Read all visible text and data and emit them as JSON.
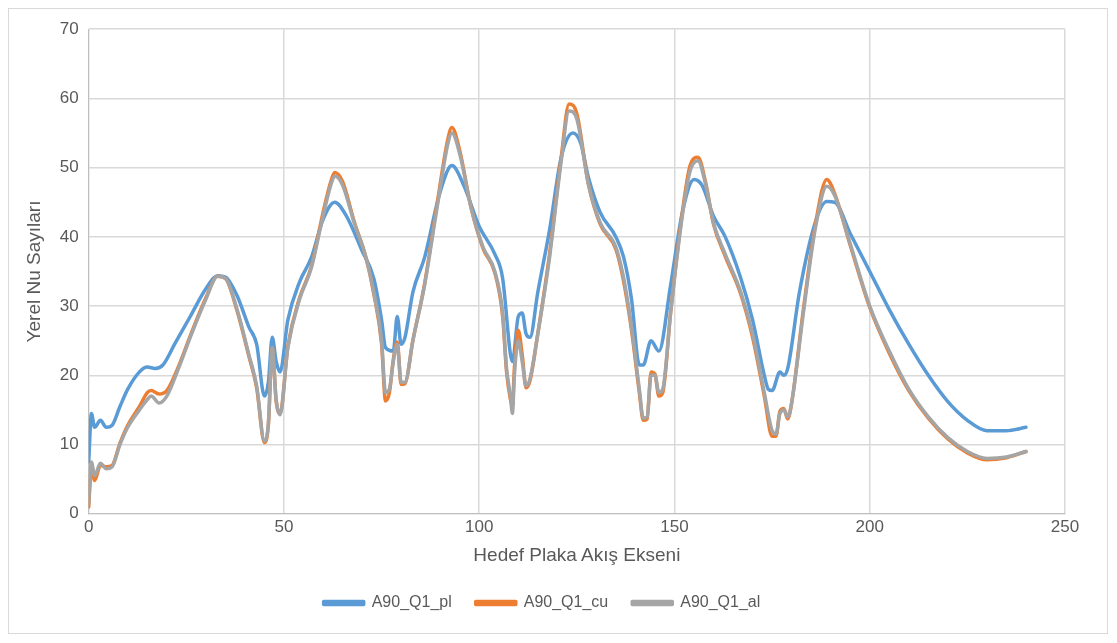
{
  "chart_data": {
    "type": "line",
    "xlabel": "Hedef Plaka Akış Ekseni",
    "ylabel": "Yerel Nu Sayıları",
    "xlim": [
      0,
      250
    ],
    "xticks": [
      0,
      50,
      100,
      150,
      200,
      250
    ],
    "ylim": [
      0,
      70
    ],
    "yticks": [
      0,
      10,
      20,
      30,
      40,
      50,
      60,
      70
    ],
    "grid": true,
    "legend": "bottom",
    "marker": "none",
    "line_style": "solid",
    "series": [
      {
        "name": "A90_Q1_pl",
        "color": "#5b9bd5",
        "x": [
          0,
          0.7,
          1.5,
          3,
          4.5,
          6,
          8,
          10,
          13,
          15,
          17,
          19,
          22,
          26,
          30,
          33,
          35,
          38,
          41,
          43,
          45,
          46,
          47,
          48,
          49,
          51,
          54,
          57,
          60,
          63,
          66,
          70,
          73,
          75,
          76,
          78,
          79,
          80,
          81,
          83,
          86,
          90,
          93,
          96,
          100,
          104,
          106,
          108,
          108.5,
          110,
          111,
          112,
          113,
          115,
          118,
          121,
          124,
          126,
          128,
          131,
          135,
          137,
          139,
          141,
          142,
          144,
          146,
          149,
          152,
          155,
          157,
          160,
          163,
          167,
          170,
          173,
          174,
          175,
          177,
          178,
          179,
          182,
          186,
          189,
          191,
          195,
          200,
          205,
          210,
          215,
          220,
          225,
          230,
          235,
          240
        ],
        "values": [
          7.5,
          14.5,
          12.5,
          13.5,
          12.5,
          12.8,
          15.5,
          18,
          20.5,
          21.2,
          21,
          21.5,
          24.5,
          28.5,
          32.5,
          34.4,
          34.2,
          31.5,
          27,
          24.5,
          17,
          19,
          25.5,
          22,
          20.5,
          28,
          33.5,
          37,
          42.5,
          45,
          43,
          38,
          34,
          28,
          24,
          23.5,
          28.5,
          24.5,
          25.5,
          32,
          37,
          46.5,
          50.3,
          47.5,
          41.5,
          37.5,
          34,
          23,
          22,
          28.5,
          29,
          26,
          25.5,
          32,
          41,
          51.5,
          55,
          53.5,
          48.5,
          43.5,
          40,
          37,
          31,
          21.5,
          21.5,
          25,
          23.5,
          33,
          43.5,
          48.3,
          47.5,
          43,
          40,
          34,
          28,
          20,
          18,
          17.8,
          20.5,
          20,
          21,
          32,
          42,
          45.1,
          45,
          40.5,
          35,
          29.5,
          24.5,
          20,
          16.2,
          13.5,
          12,
          12,
          12.5
        ]
      },
      {
        "name": "A90_Q1_cu",
        "color": "#ed7d31",
        "x": [
          0,
          0.7,
          1.5,
          3,
          4.5,
          6,
          8,
          10,
          13,
          15,
          16,
          18,
          20,
          23,
          26,
          30,
          33,
          35,
          38,
          41,
          43,
          45,
          46,
          47,
          48,
          49,
          51,
          54,
          57,
          60,
          62,
          63,
          65,
          68,
          71,
          73,
          75,
          76,
          77,
          78,
          79,
          80,
          81,
          83,
          86,
          89,
          92,
          93,
          95,
          98,
          101,
          104,
          106,
          107,
          108,
          108.5,
          109,
          110,
          111,
          112,
          113,
          115,
          118,
          121,
          123,
          125,
          128,
          131,
          135,
          137,
          139,
          141,
          142,
          143,
          144,
          145,
          146,
          147,
          149,
          152,
          154,
          156,
          158,
          160,
          163,
          167,
          170,
          173,
          175,
          176,
          177,
          178,
          179,
          180,
          183,
          186,
          189,
          191,
          195,
          200,
          205,
          210,
          215,
          220,
          225,
          230,
          235,
          240
        ],
        "values": [
          1,
          7,
          4.8,
          7,
          6.8,
          7,
          10.2,
          12.8,
          15.5,
          17.5,
          17.8,
          17.3,
          17.8,
          21.3,
          25.7,
          31.2,
          34.3,
          34,
          29.3,
          22.8,
          18.2,
          10.3,
          12.8,
          24,
          16.3,
          14.5,
          24.2,
          31.2,
          35.7,
          43.5,
          48,
          49.3,
          48,
          42.2,
          37,
          31.8,
          24.5,
          16.3,
          17.5,
          22.3,
          24.8,
          18.7,
          18.8,
          25,
          33.2,
          44,
          54.2,
          55.8,
          52.5,
          44,
          38.3,
          34.8,
          28.5,
          20.5,
          16.5,
          15.5,
          21,
          26.5,
          23,
          18.2,
          19.2,
          26,
          37.5,
          51.5,
          59.2,
          57.8,
          47.5,
          41.8,
          38.2,
          33.5,
          26.5,
          17.5,
          13.5,
          13.7,
          20.5,
          20.2,
          17,
          17.5,
          29,
          43.5,
          50.3,
          51.5,
          47.8,
          41.8,
          37.2,
          31.7,
          25.5,
          17,
          11.2,
          11.2,
          14.8,
          15.2,
          13.7,
          16,
          29.5,
          41.5,
          48.3,
          46.3,
          38.8,
          29.8,
          23.2,
          17.8,
          13.8,
          10.8,
          8.8,
          7.8,
          8.1,
          9
        ]
      },
      {
        "name": "A90_Q1_al",
        "color": "#a5a5a5",
        "x": [
          0,
          0.7,
          1.5,
          3,
          4.5,
          6,
          8,
          10,
          13,
          15,
          16,
          18,
          20,
          23,
          26,
          30,
          33,
          35,
          38,
          41,
          43,
          45,
          46,
          47,
          48,
          49,
          51,
          54,
          57,
          60,
          62,
          63,
          65,
          68,
          71,
          73,
          75,
          76,
          77,
          78,
          79,
          80,
          81,
          83,
          86,
          89,
          92,
          93,
          95,
          98,
          101,
          104,
          106,
          107,
          108,
          108.5,
          109,
          110,
          111,
          112,
          113,
          115,
          118,
          121,
          123,
          125,
          128,
          131,
          135,
          137,
          139,
          141,
          142,
          143,
          144,
          145,
          146,
          147,
          149,
          152,
          154,
          156,
          158,
          160,
          163,
          167,
          170,
          173,
          175,
          176,
          177,
          178,
          179,
          180,
          183,
          186,
          189,
          191,
          195,
          200,
          205,
          210,
          215,
          220,
          225,
          230,
          235,
          240
        ],
        "values": [
          1.5,
          7.5,
          5.5,
          7.3,
          6.5,
          6.8,
          10,
          12.5,
          15,
          16.5,
          17,
          16,
          17,
          21,
          25.5,
          31,
          34.3,
          34,
          29.5,
          23,
          18.5,
          10.5,
          13,
          24,
          16.5,
          14.3,
          24,
          31,
          35.5,
          43,
          47.5,
          48.8,
          47.5,
          42,
          37,
          32,
          25,
          17.5,
          18,
          22,
          24.5,
          19,
          19,
          25,
          33,
          43.5,
          53.5,
          55,
          52,
          44,
          38.5,
          35,
          29,
          21,
          17,
          14.5,
          20,
          25,
          22,
          18.5,
          19.5,
          26,
          37,
          51,
          58.2,
          57,
          47.5,
          42,
          38.5,
          34,
          27,
          18,
          13.8,
          14,
          20,
          20,
          17.5,
          18,
          29,
          43,
          49.5,
          51,
          47.5,
          42,
          37.5,
          32,
          26,
          17.5,
          12,
          11.5,
          14.5,
          15,
          14,
          16,
          29,
          41,
          47.3,
          46,
          39,
          30,
          23.5,
          18,
          14,
          11,
          9,
          8,
          8.2,
          9
        ]
      }
    ]
  }
}
